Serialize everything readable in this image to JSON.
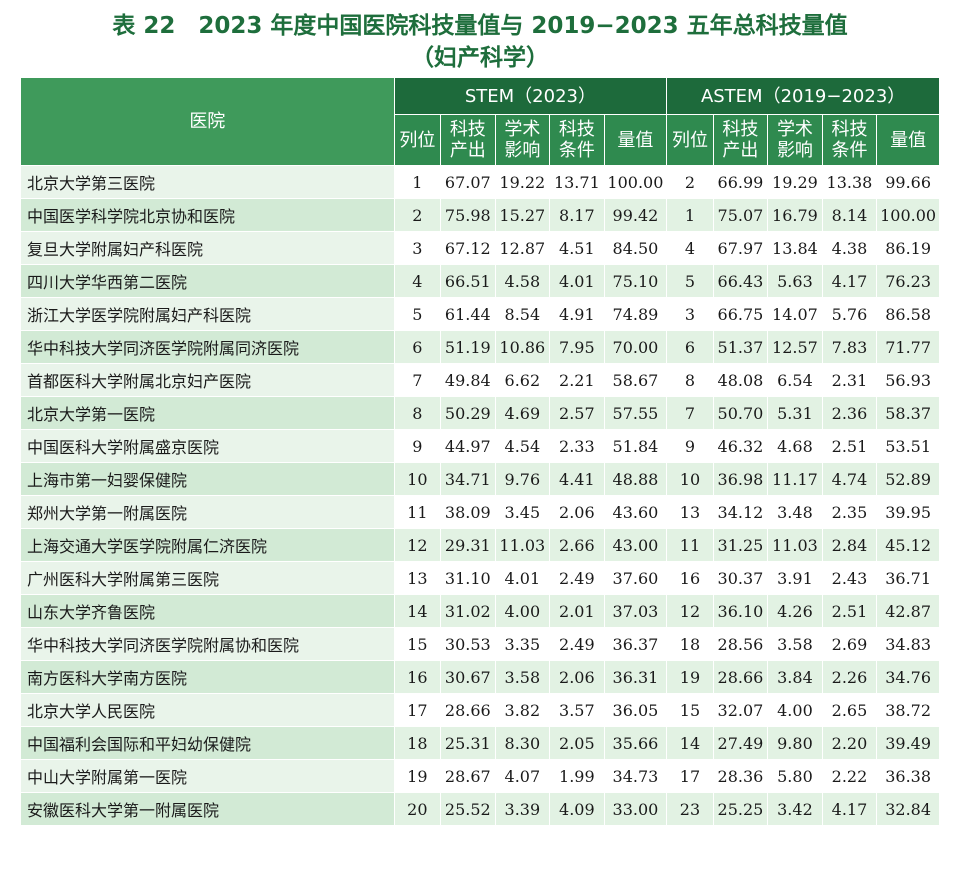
{
  "title_line1": "表 22　2023 年度中国医院科技量值与 2019−2023 五年总科技量值",
  "title_line2": "（妇产科学）",
  "header": {
    "hospital": "医院",
    "stem_group": "STEM（2023）",
    "astem_group": "ASTEM（2019−2023）",
    "stem_cols": [
      "列位",
      "科技产出",
      "学术影响",
      "科技条件",
      "量值"
    ],
    "astem_cols": [
      "列位",
      "科技产出",
      "学术影响",
      "科技条件",
      "量值"
    ]
  },
  "rows": [
    {
      "name": "北京大学第三医院",
      "s_rank": "1",
      "s_out": "67.07",
      "s_inf": "19.22",
      "s_cond": "13.71",
      "s_val": "100.00",
      "a_rank": "2",
      "a_out": "66.99",
      "a_inf": "19.29",
      "a_cond": "13.38",
      "a_val": "99.66"
    },
    {
      "name": "中国医学科学院北京协和医院",
      "s_rank": "2",
      "s_out": "75.98",
      "s_inf": "15.27",
      "s_cond": "8.17",
      "s_val": "99.42",
      "a_rank": "1",
      "a_out": "75.07",
      "a_inf": "16.79",
      "a_cond": "8.14",
      "a_val": "100.00"
    },
    {
      "name": "复旦大学附属妇产科医院",
      "s_rank": "3",
      "s_out": "67.12",
      "s_inf": "12.87",
      "s_cond": "4.51",
      "s_val": "84.50",
      "a_rank": "4",
      "a_out": "67.97",
      "a_inf": "13.84",
      "a_cond": "4.38",
      "a_val": "86.19"
    },
    {
      "name": "四川大学华西第二医院",
      "s_rank": "4",
      "s_out": "66.51",
      "s_inf": "4.58",
      "s_cond": "4.01",
      "s_val": "75.10",
      "a_rank": "5",
      "a_out": "66.43",
      "a_inf": "5.63",
      "a_cond": "4.17",
      "a_val": "76.23"
    },
    {
      "name": "浙江大学医学院附属妇产科医院",
      "s_rank": "5",
      "s_out": "61.44",
      "s_inf": "8.54",
      "s_cond": "4.91",
      "s_val": "74.89",
      "a_rank": "3",
      "a_out": "66.75",
      "a_inf": "14.07",
      "a_cond": "5.76",
      "a_val": "86.58"
    },
    {
      "name": "华中科技大学同济医学院附属同济医院",
      "s_rank": "6",
      "s_out": "51.19",
      "s_inf": "10.86",
      "s_cond": "7.95",
      "s_val": "70.00",
      "a_rank": "6",
      "a_out": "51.37",
      "a_inf": "12.57",
      "a_cond": "7.83",
      "a_val": "71.77"
    },
    {
      "name": "首都医科大学附属北京妇产医院",
      "s_rank": "7",
      "s_out": "49.84",
      "s_inf": "6.62",
      "s_cond": "2.21",
      "s_val": "58.67",
      "a_rank": "8",
      "a_out": "48.08",
      "a_inf": "6.54",
      "a_cond": "2.31",
      "a_val": "56.93"
    },
    {
      "name": "北京大学第一医院",
      "s_rank": "8",
      "s_out": "50.29",
      "s_inf": "4.69",
      "s_cond": "2.57",
      "s_val": "57.55",
      "a_rank": "7",
      "a_out": "50.70",
      "a_inf": "5.31",
      "a_cond": "2.36",
      "a_val": "58.37"
    },
    {
      "name": "中国医科大学附属盛京医院",
      "s_rank": "9",
      "s_out": "44.97",
      "s_inf": "4.54",
      "s_cond": "2.33",
      "s_val": "51.84",
      "a_rank": "9",
      "a_out": "46.32",
      "a_inf": "4.68",
      "a_cond": "2.51",
      "a_val": "53.51"
    },
    {
      "name": "上海市第一妇婴保健院",
      "s_rank": "10",
      "s_out": "34.71",
      "s_inf": "9.76",
      "s_cond": "4.41",
      "s_val": "48.88",
      "a_rank": "10",
      "a_out": "36.98",
      "a_inf": "11.17",
      "a_cond": "4.74",
      "a_val": "52.89"
    },
    {
      "name": "郑州大学第一附属医院",
      "s_rank": "11",
      "s_out": "38.09",
      "s_inf": "3.45",
      "s_cond": "2.06",
      "s_val": "43.60",
      "a_rank": "13",
      "a_out": "34.12",
      "a_inf": "3.48",
      "a_cond": "2.35",
      "a_val": "39.95"
    },
    {
      "name": "上海交通大学医学院附属仁济医院",
      "s_rank": "12",
      "s_out": "29.31",
      "s_inf": "11.03",
      "s_cond": "2.66",
      "s_val": "43.00",
      "a_rank": "11",
      "a_out": "31.25",
      "a_inf": "11.03",
      "a_cond": "2.84",
      "a_val": "45.12"
    },
    {
      "name": "广州医科大学附属第三医院",
      "s_rank": "13",
      "s_out": "31.10",
      "s_inf": "4.01",
      "s_cond": "2.49",
      "s_val": "37.60",
      "a_rank": "16",
      "a_out": "30.37",
      "a_inf": "3.91",
      "a_cond": "2.43",
      "a_val": "36.71"
    },
    {
      "name": "山东大学齐鲁医院",
      "s_rank": "14",
      "s_out": "31.02",
      "s_inf": "4.00",
      "s_cond": "2.01",
      "s_val": "37.03",
      "a_rank": "12",
      "a_out": "36.10",
      "a_inf": "4.26",
      "a_cond": "2.51",
      "a_val": "42.87"
    },
    {
      "name": "华中科技大学同济医学院附属协和医院",
      "s_rank": "15",
      "s_out": "30.53",
      "s_inf": "3.35",
      "s_cond": "2.49",
      "s_val": "36.37",
      "a_rank": "18",
      "a_out": "28.56",
      "a_inf": "3.58",
      "a_cond": "2.69",
      "a_val": "34.83"
    },
    {
      "name": "南方医科大学南方医院",
      "s_rank": "16",
      "s_out": "30.67",
      "s_inf": "3.58",
      "s_cond": "2.06",
      "s_val": "36.31",
      "a_rank": "19",
      "a_out": "28.66",
      "a_inf": "3.84",
      "a_cond": "2.26",
      "a_val": "34.76"
    },
    {
      "name": "北京大学人民医院",
      "s_rank": "17",
      "s_out": "28.66",
      "s_inf": "3.82",
      "s_cond": "3.57",
      "s_val": "36.05",
      "a_rank": "15",
      "a_out": "32.07",
      "a_inf": "4.00",
      "a_cond": "2.65",
      "a_val": "38.72"
    },
    {
      "name": "中国福利会国际和平妇幼保健院",
      "s_rank": "18",
      "s_out": "25.31",
      "s_inf": "8.30",
      "s_cond": "2.05",
      "s_val": "35.66",
      "a_rank": "14",
      "a_out": "27.49",
      "a_inf": "9.80",
      "a_cond": "2.20",
      "a_val": "39.49"
    },
    {
      "name": "中山大学附属第一医院",
      "s_rank": "19",
      "s_out": "28.67",
      "s_inf": "4.07",
      "s_cond": "1.99",
      "s_val": "34.73",
      "a_rank": "17",
      "a_out": "28.36",
      "a_inf": "5.80",
      "a_cond": "2.22",
      "a_val": "36.38"
    },
    {
      "name": "安徽医科大学第一附属医院",
      "s_rank": "20",
      "s_out": "25.52",
      "s_inf": "3.39",
      "s_cond": "4.09",
      "s_val": "33.00",
      "a_rank": "23",
      "a_out": "25.25",
      "a_inf": "3.42",
      "a_cond": "4.17",
      "a_val": "32.84"
    }
  ]
}
